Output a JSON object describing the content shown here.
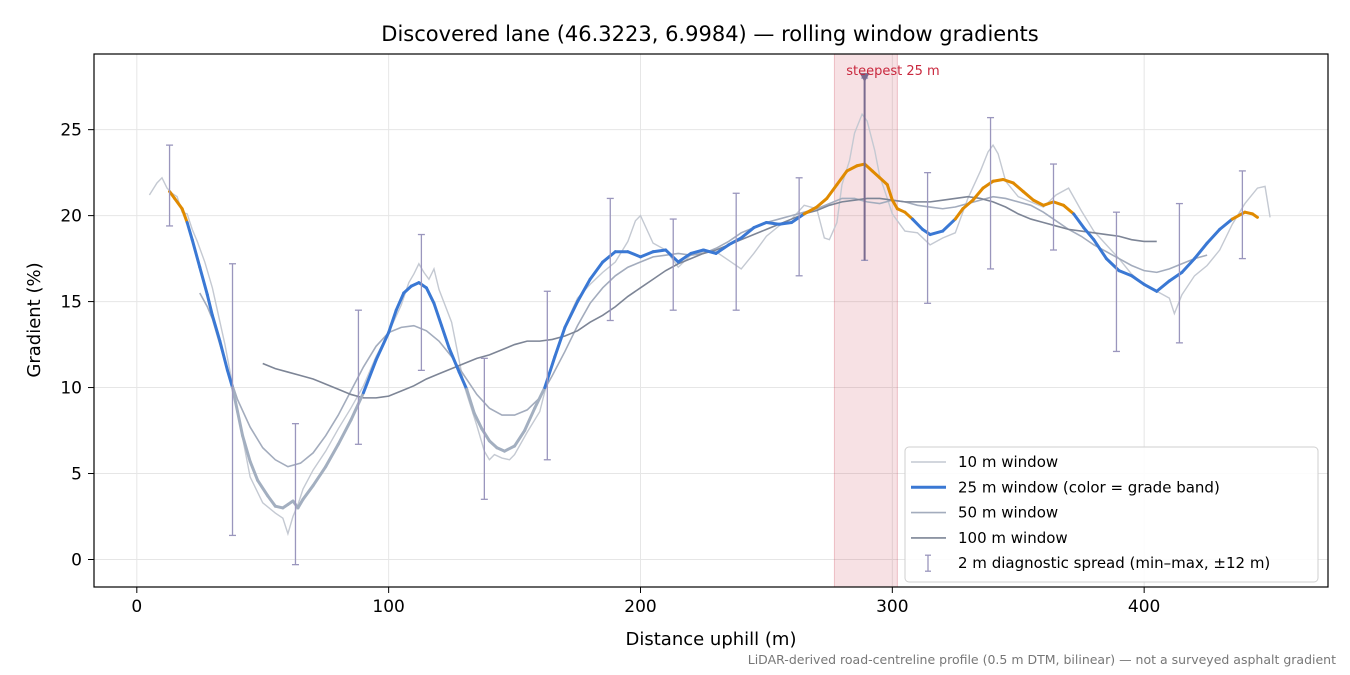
{
  "chart_data": {
    "type": "line",
    "title": "Discovered lane (46.3223, 6.9984) — rolling window gradients",
    "xlabel": "Distance uphill (m)",
    "ylabel": "Gradient (%)",
    "xlim": [
      -17,
      473
    ],
    "ylim": [
      -1.6,
      29.4
    ],
    "xticks": [
      0,
      100,
      200,
      300,
      400
    ],
    "yticks": [
      0,
      5,
      10,
      15,
      20,
      25
    ],
    "grid": true,
    "legend_position": "lower right",
    "footnote": "LiDAR-derived road-centreline profile (0.5 m DTM, bilinear) — not a surveyed asphalt gradient",
    "highlight": {
      "label": "steepest 25 m",
      "x_range": [
        277,
        302
      ],
      "marker_x": 289,
      "marker_y": 28.0,
      "color": "#c9283e"
    },
    "series": [
      {
        "name": "10 m window",
        "color": "#c4c9d2",
        "x": [
          5,
          8,
          10,
          12,
          14,
          16,
          18,
          20,
          22,
          24,
          27,
          30,
          35,
          40,
          45,
          50,
          55,
          58,
          60,
          62,
          64,
          66,
          70,
          75,
          80,
          85,
          90,
          95,
          100,
          105,
          108,
          110,
          112,
          114,
          116,
          118,
          120,
          125,
          130,
          135,
          138,
          140,
          142,
          145,
          148,
          150,
          155,
          160,
          165,
          170,
          175,
          180,
          185,
          190,
          195,
          198,
          200,
          205,
          210,
          215,
          220,
          225,
          230,
          235,
          240,
          245,
          250,
          255,
          260,
          265,
          270,
          273,
          275,
          278,
          280,
          283,
          285,
          288,
          290,
          293,
          295,
          298,
          300,
          305,
          310,
          315,
          320,
          325,
          330,
          335,
          338,
          340,
          342,
          345,
          350,
          355,
          360,
          365,
          370,
          375,
          380,
          385,
          390,
          395,
          400,
          405,
          410,
          412,
          415,
          420,
          425,
          430,
          435,
          440,
          445,
          448,
          450
        ],
        "values": [
          21.2,
          21.9,
          22.2,
          21.6,
          21.3,
          21.1,
          20.2,
          20.1,
          19.2,
          18.5,
          17.3,
          15.8,
          12.5,
          8.6,
          4.8,
          3.3,
          2.7,
          2.4,
          1.5,
          2.5,
          3.2,
          4.1,
          5.2,
          6.3,
          7.6,
          8.8,
          10.1,
          11.8,
          13.2,
          14.8,
          16.1,
          16.6,
          17.2,
          16.7,
          16.3,
          16.9,
          15.7,
          13.8,
          10.1,
          7.8,
          6.3,
          5.8,
          6.1,
          5.9,
          5.8,
          6.1,
          7.4,
          8.6,
          11.5,
          13.6,
          15.2,
          16.0,
          16.7,
          17.3,
          18.5,
          19.7,
          20.0,
          18.4,
          18.0,
          17.0,
          17.7,
          17.9,
          17.9,
          17.4,
          16.9,
          17.8,
          18.8,
          19.4,
          19.8,
          20.6,
          20.4,
          18.7,
          18.6,
          19.6,
          21.8,
          23.2,
          24.8,
          25.9,
          25.5,
          23.8,
          22.3,
          21.0,
          20.1,
          19.1,
          19.0,
          18.3,
          18.7,
          19.0,
          21.0,
          22.6,
          23.7,
          24.1,
          23.6,
          22.0,
          21.1,
          20.8,
          20.5,
          21.2,
          21.6,
          20.3,
          19.1,
          18.3,
          17.5,
          16.6,
          16.0,
          15.6,
          15.2,
          14.3,
          15.4,
          16.5,
          17.1,
          18.0,
          19.5,
          20.7,
          21.6,
          21.7,
          19.9
        ]
      },
      {
        "name": "25 m window (color = grade band)",
        "color": "#3a78d4",
        "band_colors": {
          "10-20 %": "#3a78d4",
          "20-25 %": "#e08a00",
          "<10 %": "#a3afc0"
        },
        "x": [
          13,
          15,
          18,
          20,
          22,
          25,
          28,
          30,
          33,
          36,
          38,
          40,
          42,
          45,
          48,
          52,
          55,
          58,
          60,
          62,
          64,
          66,
          70,
          75,
          80,
          85,
          90,
          95,
          100,
          103,
          106,
          109,
          112,
          115,
          118,
          121,
          124,
          128,
          131,
          134,
          137,
          140,
          143,
          146,
          150,
          154,
          158,
          162,
          166,
          170,
          175,
          180,
          185,
          190,
          195,
          200,
          205,
          210,
          215,
          220,
          225,
          230,
          235,
          240,
          245,
          250,
          255,
          260,
          265,
          270,
          274,
          278,
          282,
          286,
          289,
          292,
          295,
          298,
          300,
          302,
          305,
          308,
          312,
          315,
          320,
          325,
          328,
          332,
          336,
          340,
          344,
          348,
          352,
          356,
          360,
          364,
          368,
          372,
          376,
          380,
          385,
          390,
          395,
          400,
          405,
          410,
          415,
          420,
          425,
          430,
          435,
          440,
          443,
          445
        ],
        "values": [
          21.4,
          21.0,
          20.4,
          19.6,
          18.6,
          17.0,
          15.4,
          14.2,
          12.7,
          11.0,
          10.0,
          8.6,
          7.2,
          5.7,
          4.6,
          3.7,
          3.1,
          3.0,
          3.2,
          3.4,
          3.0,
          3.5,
          4.3,
          5.4,
          6.7,
          8.1,
          9.7,
          11.6,
          13.2,
          14.5,
          15.5,
          15.9,
          16.1,
          15.8,
          14.9,
          13.6,
          12.3,
          10.9,
          9.9,
          8.5,
          7.6,
          6.9,
          6.5,
          6.3,
          6.6,
          7.5,
          8.8,
          10.0,
          11.8,
          13.5,
          15.0,
          16.3,
          17.3,
          17.9,
          17.9,
          17.6,
          17.9,
          18.0,
          17.3,
          17.8,
          18.0,
          17.8,
          18.3,
          18.7,
          19.3,
          19.6,
          19.5,
          19.6,
          20.1,
          20.5,
          21.0,
          21.8,
          22.6,
          22.9,
          23.0,
          22.6,
          22.2,
          21.8,
          20.9,
          20.4,
          20.2,
          19.8,
          19.2,
          18.9,
          19.1,
          19.8,
          20.4,
          20.9,
          21.6,
          22.0,
          22.1,
          21.9,
          21.4,
          20.9,
          20.6,
          20.8,
          20.6,
          20.1,
          19.3,
          18.6,
          17.5,
          16.8,
          16.5,
          16.0,
          15.6,
          16.2,
          16.7,
          17.5,
          18.4,
          19.2,
          19.8,
          20.2,
          20.1,
          19.9
        ]
      },
      {
        "name": "50 m window",
        "color": "#a3acbd",
        "x": [
          25,
          28,
          30,
          35,
          40,
          45,
          50,
          55,
          60,
          65,
          70,
          75,
          80,
          85,
          90,
          95,
          100,
          105,
          110,
          115,
          120,
          125,
          130,
          135,
          140,
          145,
          150,
          155,
          160,
          165,
          170,
          175,
          180,
          185,
          190,
          195,
          200,
          205,
          210,
          215,
          220,
          225,
          230,
          235,
          240,
          245,
          250,
          255,
          260,
          265,
          270,
          275,
          280,
          285,
          290,
          295,
          300,
          305,
          310,
          315,
          320,
          325,
          330,
          335,
          340,
          345,
          350,
          355,
          360,
          365,
          370,
          375,
          380,
          385,
          390,
          395,
          400,
          405,
          410,
          415,
          420,
          425
        ],
        "values": [
          15.5,
          14.7,
          14.0,
          11.5,
          9.3,
          7.7,
          6.5,
          5.8,
          5.4,
          5.6,
          6.2,
          7.2,
          8.4,
          9.8,
          11.2,
          12.4,
          13.2,
          13.5,
          13.6,
          13.3,
          12.7,
          11.8,
          10.7,
          9.6,
          8.8,
          8.4,
          8.4,
          8.7,
          9.4,
          10.7,
          12.1,
          13.6,
          14.9,
          15.8,
          16.5,
          17.0,
          17.3,
          17.6,
          17.7,
          17.8,
          17.7,
          17.8,
          18.1,
          18.5,
          19.0,
          19.3,
          19.6,
          19.8,
          20.0,
          20.2,
          20.4,
          20.7,
          21.0,
          21.0,
          20.8,
          20.7,
          20.9,
          20.8,
          20.6,
          20.5,
          20.4,
          20.5,
          20.7,
          20.9,
          21.1,
          21.0,
          20.8,
          20.6,
          20.2,
          19.7,
          19.2,
          18.8,
          18.3,
          17.9,
          17.5,
          17.1,
          16.8,
          16.7,
          16.9,
          17.2,
          17.5,
          17.7
        ]
      },
      {
        "name": "100 m window",
        "color": "#7d8596",
        "x": [
          50,
          55,
          60,
          65,
          70,
          75,
          80,
          85,
          90,
          95,
          100,
          105,
          110,
          115,
          120,
          125,
          130,
          135,
          140,
          145,
          150,
          155,
          160,
          165,
          170,
          175,
          180,
          185,
          190,
          195,
          200,
          205,
          210,
          215,
          220,
          225,
          230,
          235,
          240,
          245,
          250,
          255,
          260,
          265,
          270,
          275,
          280,
          285,
          290,
          295,
          300,
          305,
          310,
          315,
          320,
          325,
          330,
          335,
          340,
          345,
          350,
          355,
          360,
          365,
          370,
          375,
          380,
          385,
          390,
          395,
          400,
          405
        ],
        "values": [
          11.4,
          11.1,
          10.9,
          10.7,
          10.5,
          10.2,
          9.9,
          9.6,
          9.4,
          9.4,
          9.5,
          9.8,
          10.1,
          10.5,
          10.8,
          11.1,
          11.4,
          11.7,
          11.9,
          12.2,
          12.5,
          12.7,
          12.7,
          12.8,
          13.0,
          13.3,
          13.8,
          14.2,
          14.7,
          15.3,
          15.8,
          16.3,
          16.8,
          17.2,
          17.5,
          17.8,
          18.0,
          18.3,
          18.6,
          18.9,
          19.2,
          19.5,
          19.8,
          20.1,
          20.3,
          20.6,
          20.8,
          20.9,
          21.0,
          21.0,
          20.9,
          20.8,
          20.8,
          20.8,
          20.9,
          21.0,
          21.1,
          21.0,
          20.8,
          20.5,
          20.1,
          19.8,
          19.6,
          19.4,
          19.2,
          19.1,
          19.0,
          18.9,
          18.8,
          18.6,
          18.5,
          18.5
        ]
      }
    ],
    "error_bars": {
      "name": "2 m diagnostic spread (min–max, ±12 m)",
      "color": "#9a96bd",
      "x": [
        13,
        38,
        63,
        88,
        113,
        138,
        163,
        188,
        213,
        238,
        263,
        289,
        314,
        339,
        364,
        389,
        414,
        439
      ],
      "low": [
        19.4,
        1.4,
        -0.3,
        6.7,
        11.0,
        3.5,
        5.8,
        13.9,
        14.5,
        14.5,
        16.5,
        17.4,
        14.9,
        16.9,
        18.0,
        12.1,
        12.6,
        17.5
      ],
      "high": [
        24.1,
        17.2,
        7.9,
        14.5,
        18.9,
        11.7,
        15.6,
        21.0,
        19.8,
        21.3,
        22.2,
        28.0,
        22.5,
        25.7,
        23.0,
        20.2,
        20.7,
        22.6
      ]
    }
  }
}
